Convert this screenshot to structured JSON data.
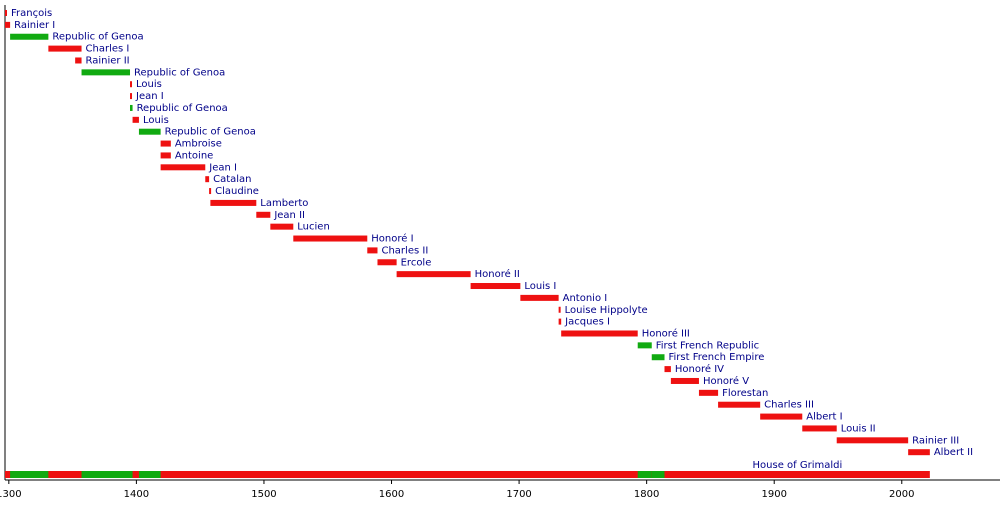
{
  "chart_data": {
    "type": "timeline",
    "xlim": [
      1297,
      2077
    ],
    "xticks": [
      1300,
      1400,
      1500,
      1600,
      1700,
      1800,
      1900,
      2000
    ],
    "label_color": "#000088",
    "bars": [
      {
        "label": "François",
        "start": 1297,
        "end": 1297,
        "color": "#ee1111"
      },
      {
        "label": "Rainier I",
        "start": 1297,
        "end": 1301,
        "color": "#ee1111"
      },
      {
        "label": "Republic of Genoa",
        "start": 1301,
        "end": 1331,
        "color": "#11aa11"
      },
      {
        "label": "Charles I",
        "start": 1331,
        "end": 1357,
        "color": "#ee1111"
      },
      {
        "label": "Rainier II",
        "start": 1352,
        "end": 1357,
        "color": "#ee1111"
      },
      {
        "label": "Republic of Genoa",
        "start": 1357,
        "end": 1395,
        "color": "#11aa11"
      },
      {
        "label": "Louis",
        "start": 1395,
        "end": 1395,
        "color": "#ee1111"
      },
      {
        "label": "Jean I",
        "start": 1395,
        "end": 1395,
        "color": "#ee1111"
      },
      {
        "label": "Republic of Genoa",
        "start": 1395,
        "end": 1397,
        "color": "#11aa11"
      },
      {
        "label": "Louis",
        "start": 1397,
        "end": 1402,
        "color": "#ee1111"
      },
      {
        "label": "Republic of Genoa",
        "start": 1402,
        "end": 1419,
        "color": "#11aa11"
      },
      {
        "label": "Ambroise",
        "start": 1419,
        "end": 1427,
        "color": "#ee1111"
      },
      {
        "label": "Antoine",
        "start": 1419,
        "end": 1427,
        "color": "#ee1111"
      },
      {
        "label": "Jean I",
        "start": 1419,
        "end": 1454,
        "color": "#ee1111"
      },
      {
        "label": "Catalan",
        "start": 1454,
        "end": 1457,
        "color": "#ee1111"
      },
      {
        "label": "Claudine",
        "start": 1457,
        "end": 1458,
        "color": "#ee1111"
      },
      {
        "label": "Lamberto",
        "start": 1458,
        "end": 1494,
        "color": "#ee1111"
      },
      {
        "label": "Jean II",
        "start": 1494,
        "end": 1505,
        "color": "#ee1111"
      },
      {
        "label": "Lucien",
        "start": 1505,
        "end": 1523,
        "color": "#ee1111"
      },
      {
        "label": "Honoré I",
        "start": 1523,
        "end": 1581,
        "color": "#ee1111"
      },
      {
        "label": "Charles II",
        "start": 1581,
        "end": 1589,
        "color": "#ee1111"
      },
      {
        "label": "Ercole",
        "start": 1589,
        "end": 1604,
        "color": "#ee1111"
      },
      {
        "label": "Honoré II",
        "start": 1604,
        "end": 1662,
        "color": "#ee1111"
      },
      {
        "label": "Louis I",
        "start": 1662,
        "end": 1701,
        "color": "#ee1111"
      },
      {
        "label": "Antonio I",
        "start": 1701,
        "end": 1731,
        "color": "#ee1111"
      },
      {
        "label": "Louise Hippolyte",
        "start": 1731,
        "end": 1731,
        "color": "#ee1111"
      },
      {
        "label": "Jacques I",
        "start": 1731,
        "end": 1733,
        "color": "#ee1111"
      },
      {
        "label": "Honoré III",
        "start": 1733,
        "end": 1793,
        "color": "#ee1111"
      },
      {
        "label": "First French Republic",
        "start": 1793,
        "end": 1804,
        "color": "#11aa11"
      },
      {
        "label": "First French Empire",
        "start": 1804,
        "end": 1814,
        "color": "#11aa11"
      },
      {
        "label": "Honoré IV",
        "start": 1814,
        "end": 1819,
        "color": "#ee1111"
      },
      {
        "label": "Honoré V",
        "start": 1819,
        "end": 1841,
        "color": "#ee1111"
      },
      {
        "label": "Florestan",
        "start": 1841,
        "end": 1856,
        "color": "#ee1111"
      },
      {
        "label": "Charles III",
        "start": 1856,
        "end": 1889,
        "color": "#ee1111"
      },
      {
        "label": "Albert I",
        "start": 1889,
        "end": 1922,
        "color": "#ee1111"
      },
      {
        "label": "Louis II",
        "start": 1922,
        "end": 1949,
        "color": "#ee1111"
      },
      {
        "label": "Rainier III",
        "start": 1949,
        "end": 2005,
        "color": "#ee1111"
      },
      {
        "label": "Albert II",
        "start": 2005,
        "end": 2022,
        "color": "#ee1111"
      }
    ],
    "summary": {
      "label": "House of Grimaldi",
      "start": 1297,
      "end": 2022,
      "color": "#ee1111"
    }
  }
}
